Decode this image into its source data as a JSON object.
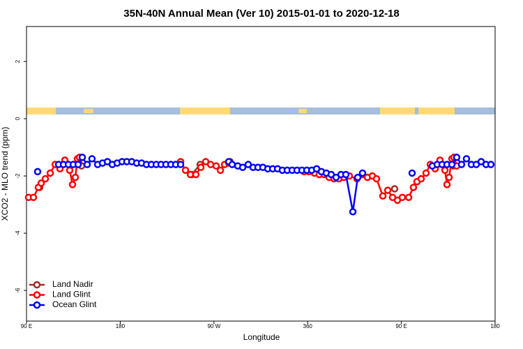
{
  "chart_data": {
    "type": "line",
    "title": "35N-40N Annual Mean (Ver 10)   2015-01-01 to 2020-12-18",
    "x_label": "Longitude",
    "y_label": "XCO2 - MLO trend (ppm)",
    "xlim": [
      90,
      540
    ],
    "ylim": [
      -7.07,
      3.22
    ],
    "xticks": [
      {
        "value": 90,
        "label": "90 E"
      },
      180,
      {
        "value": 270,
        "label": "90 W"
      },
      360,
      {
        "value": 450,
        "label": "90 E"
      },
      {
        "value": 540,
        "label": "180"
      }
    ],
    "yticks": [
      -6,
      -4,
      -2,
      0,
      2
    ],
    "legend": "bottomleft",
    "series": [
      {
        "name": "Land Nadir",
        "color": "#a52a2a",
        "x": [
          102.7,
          null,
          140.2,
          142.9,
          null,
          248.7,
          256.7,
          null,
          285.5,
          null,
          443.5,
          null,
          499.8
        ],
        "values": [
          -2.4,
          null,
          -1.55,
          -1.65,
          null,
          -1.95,
          -1.6,
          null,
          -1.5,
          null,
          -2.45,
          null,
          -1.65
        ]
      },
      {
        "name": "Land Glint",
        "color": "#ff0000",
        "x": [
          92.0,
          96.7,
          101.4,
          104.1,
          108.1,
          112.8,
          117.5,
          122.1,
          126.8,
          131.5,
          134.2,
          136.9,
          138.9,
          140.9,
          null,
          238.0,
          242.7,
          247.4,
          252.7,
          257.4,
          262.1,
          266.8,
          272.1,
          276.2,
          280.2,
          284.2,
          null,
          356.5,
          361.2,
          366.5,
          371.2,
          375.9,
          380.6,
          385.3,
          390.0,
          394.7,
          400.0,
          407.4,
          412.7,
          417.4,
          422.1,
          426.1,
          432.2,
          436.9,
          441.5,
          446.2,
          450.9,
          457.0,
          461.6,
          465.0,
          469.0,
          473.7,
          477.7,
          482.4,
          487.1,
          491.8,
          493.8,
          495.8,
          498.5,
          500.5,
          503.1
        ],
        "values": [
          -2.75,
          -2.75,
          -2.4,
          -2.25,
          -2.1,
          -1.9,
          -1.6,
          -1.75,
          -1.45,
          -1.8,
          -2.3,
          -2.05,
          -1.4,
          -1.35,
          null,
          -1.5,
          -1.8,
          -1.95,
          -1.95,
          -1.7,
          -1.5,
          -1.6,
          -1.65,
          -1.8,
          -1.6,
          -1.55,
          null,
          -1.85,
          -1.85,
          -1.9,
          -1.95,
          -1.95,
          -2.05,
          -2.1,
          -2.1,
          -2.05,
          -2.0,
          -2.1,
          -1.95,
          -2.05,
          -2.0,
          -2.1,
          -2.7,
          -2.5,
          -2.75,
          -2.85,
          -2.75,
          -2.75,
          -2.4,
          -2.2,
          -2.1,
          -1.9,
          -1.6,
          -1.75,
          -1.45,
          -1.8,
          -2.3,
          -2.05,
          -1.4,
          -1.35,
          -1.65
        ]
      },
      {
        "name": "Ocean Glint",
        "color": "#0000ff",
        "x": [
          100.7,
          null,
          120.8,
          125.5,
          130.2,
          134.9,
          139.6,
          143.6,
          148.3,
          152.9,
          158.3,
          163.0,
          167.7,
          172.4,
          177.1,
          181.8,
          186.4,
          191.1,
          195.8,
          200.5,
          205.2,
          209.9,
          214.6,
          219.2,
          223.9,
          228.6,
          233.3,
          238.0,
          null,
          284.2,
          287.5,
          292.9,
          297.6,
          302.9,
          307.6,
          312.3,
          317.0,
          321.7,
          326.4,
          331.1,
          335.7,
          340.4,
          345.1,
          349.8,
          354.5,
          359.2,
          363.9,
          368.6,
          373.2,
          377.9,
          382.6,
          387.3,
          392.0,
          396.7,
          403.4,
          408.1,
          412.7,
          null,
          460.3,
          null,
          479.7,
          484.4,
          489.1,
          493.8,
          498.5,
          503.1,
          507.8,
          512.5,
          517.2,
          521.9,
          526.6,
          531.3,
          536.0
        ],
        "values": [
          -1.85,
          null,
          -1.6,
          -1.6,
          -1.6,
          -1.6,
          -1.6,
          -1.35,
          -1.6,
          -1.4,
          -1.6,
          -1.55,
          -1.5,
          -1.6,
          -1.55,
          -1.5,
          -1.5,
          -1.5,
          -1.55,
          -1.55,
          -1.6,
          -1.6,
          -1.6,
          -1.6,
          -1.6,
          -1.6,
          -1.6,
          -1.6,
          null,
          -1.5,
          -1.6,
          -1.65,
          -1.7,
          -1.6,
          -1.7,
          -1.7,
          -1.7,
          -1.75,
          -1.75,
          -1.75,
          -1.8,
          -1.8,
          -1.8,
          -1.8,
          -1.8,
          -1.8,
          -1.8,
          -1.75,
          -1.85,
          -1.9,
          -1.95,
          -2.05,
          -1.95,
          -1.95,
          -3.25,
          -2.05,
          -1.9,
          null,
          -1.9,
          null,
          -1.65,
          -1.6,
          -1.6,
          -1.6,
          -1.6,
          -1.35,
          -1.6,
          -1.4,
          -1.6,
          -1.6,
          -1.5,
          -1.6,
          -1.6
        ]
      }
    ]
  }
}
